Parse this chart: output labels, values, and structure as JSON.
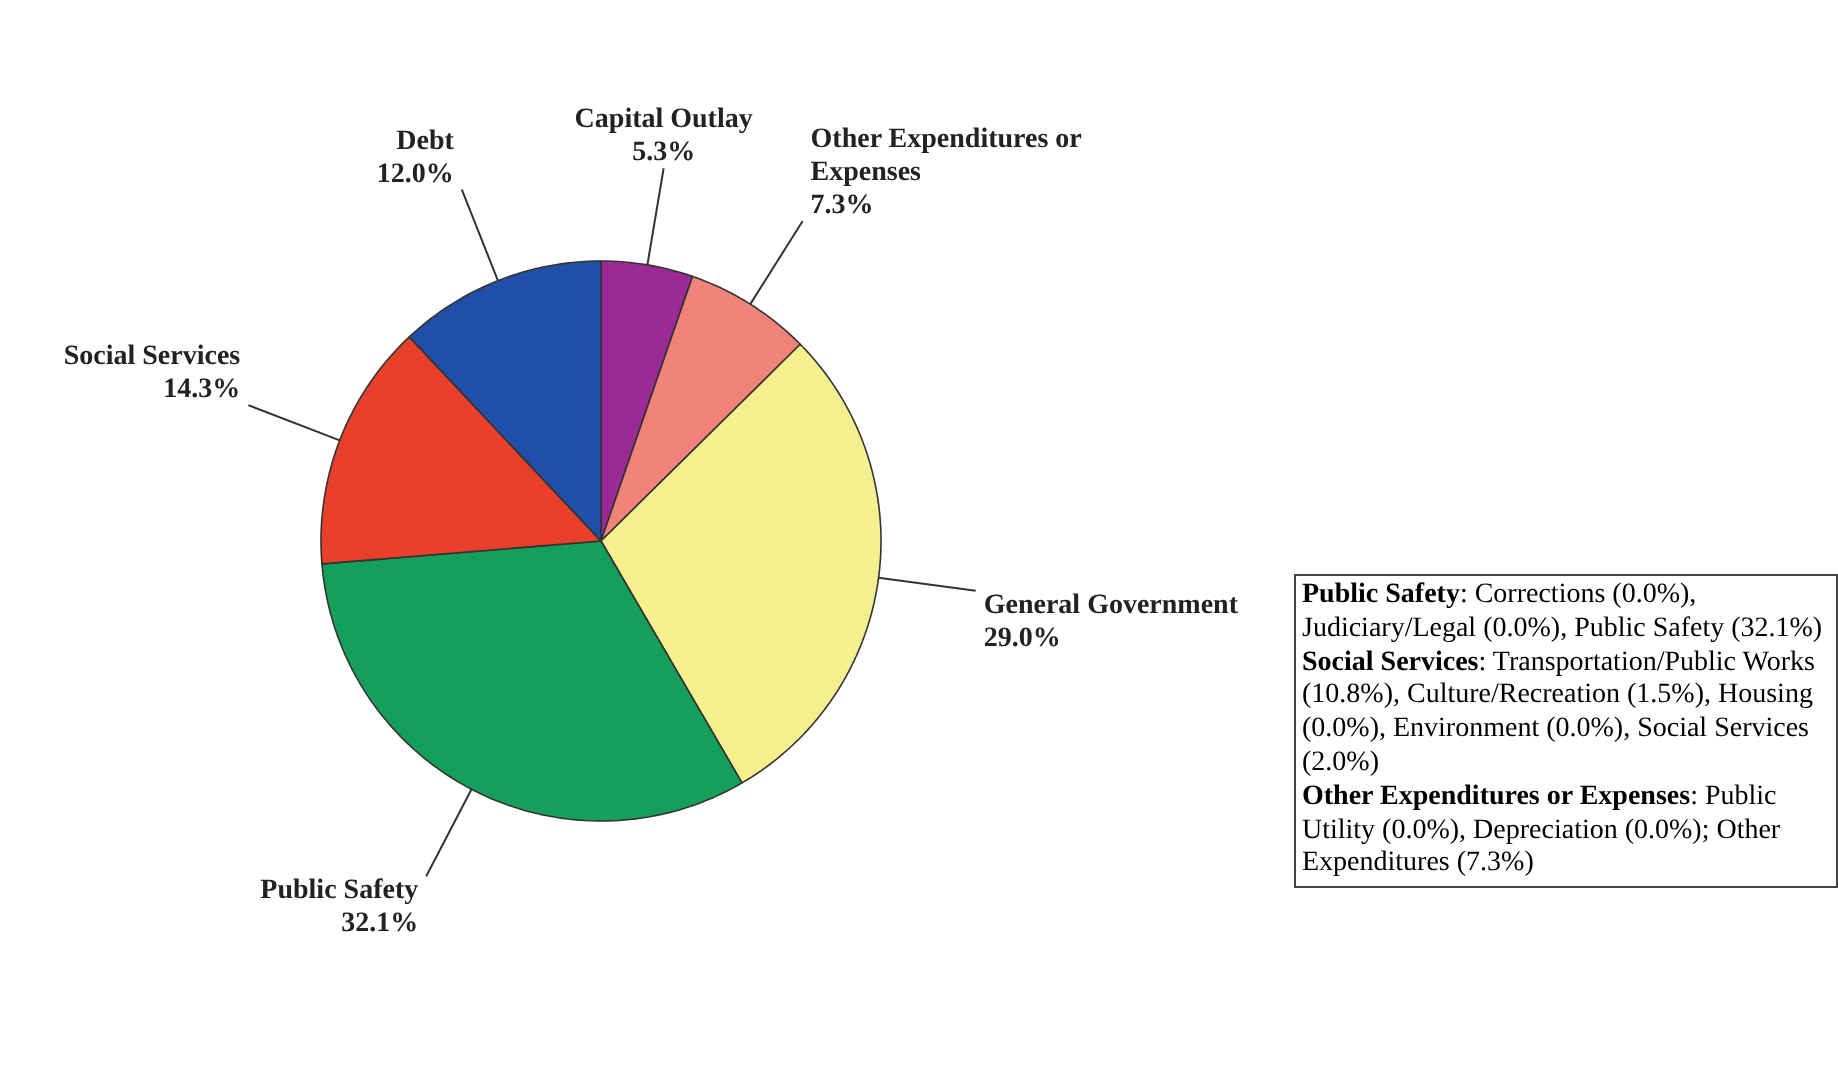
{
  "chart_data": {
    "type": "pie",
    "categories": [
      "Capital Outlay",
      "Other Expenditures or Expenses",
      "General Government",
      "Public Safety",
      "Social Services",
      "Debt"
    ],
    "values": [
      5.3,
      7.3,
      29.0,
      32.1,
      14.3,
      12.0
    ],
    "colors": [
      "#9b2a96",
      "#f2837a",
      "#f4f08e",
      "#14a05a",
      "#e8402a",
      "#1f4fa8"
    ],
    "value_labels": [
      "5.3%",
      "7.3%",
      "29.0%",
      "32.1%",
      "14.3%",
      "12.0%"
    ],
    "annotations": [
      "Public Safety: Corrections (0.0%), Judiciary/Legal (0.0%), Public Safety (32.1%)",
      "Social Services: Transportation/Public Works (10.8%), Culture/Recreation (1.5%), Housing (0.0%), Environment (0.0%), Social Services (2.0%)",
      "Other Expenditures or Expenses: Public Utility (0.0%), Depreciation (0.0%); Other Expenditures (7.3%)"
    ]
  }
}
